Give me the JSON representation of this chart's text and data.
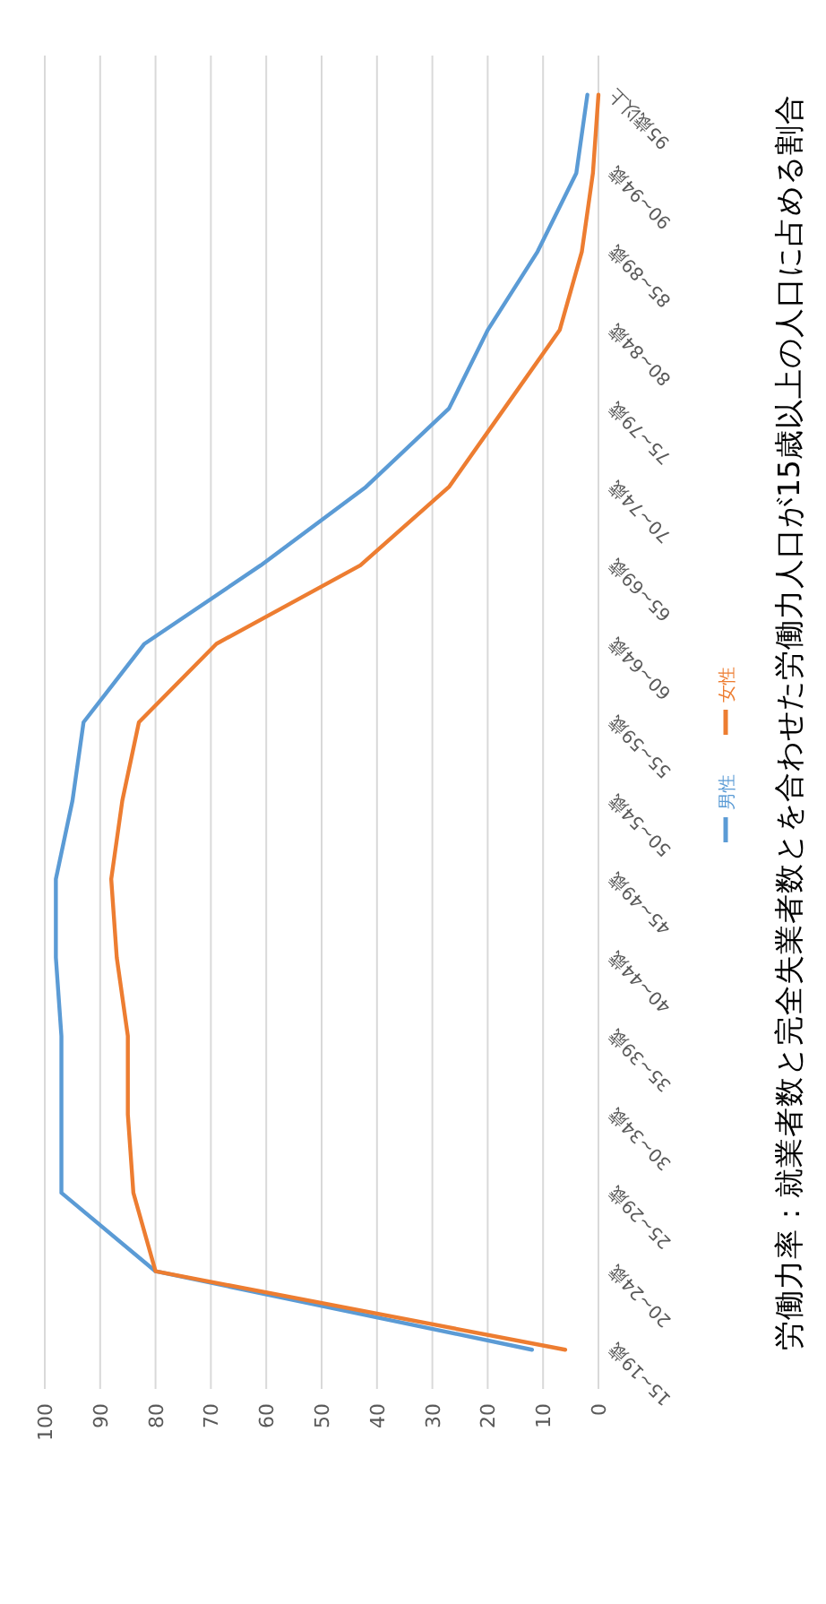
{
  "chart_data": {
    "type": "line",
    "orientation": "horizontal",
    "title": "労働力率：就業者数と完全失業者数とを合わせた労働力人口が15歳以上の人口に占める割合",
    "categories": [
      "95歳以上",
      "90~94歳",
      "85~89歳",
      "80~84歳",
      "75~79歳",
      "70~74歳",
      "65~69歳",
      "60~64歳",
      "55~59歳",
      "50~54歳",
      "45~49歳",
      "40~44歳",
      "35~39歳",
      "30~34歳",
      "25~29歳",
      "20~24歳",
      "15~19歳"
    ],
    "series": [
      {
        "name": "男性",
        "color": "#5b9bd5",
        "values": [
          2,
          4,
          11,
          20,
          27,
          42,
          61,
          82,
          93,
          95,
          98,
          98,
          97,
          97,
          97,
          80,
          12
        ]
      },
      {
        "name": "女性",
        "color": "#ed7d31",
        "values": [
          0,
          1,
          3,
          7,
          17,
          27,
          43,
          69,
          83,
          86,
          88,
          87,
          85,
          85,
          84,
          80,
          6
        ]
      }
    ],
    "xlim": [
      100,
      0
    ],
    "xticks": [
      100,
      90,
      80,
      70,
      60,
      50,
      40,
      30,
      20,
      10,
      0
    ],
    "grid": "x",
    "legend": "right"
  }
}
